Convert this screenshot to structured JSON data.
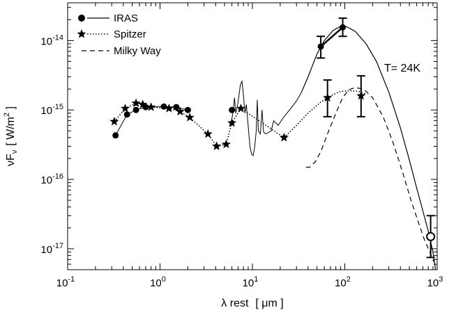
{
  "chart_data": {
    "type": "line",
    "title": "",
    "xlabel": {
      "prefix": "λ rest",
      "units": "[ μm ]"
    },
    "ylabel": {
      "prefix": "νF",
      "sub": "ν",
      "units": "[ W/m",
      "sup": "2",
      "close": " ]"
    },
    "x_scale": "log",
    "y_scale": "log",
    "xlim": [
      0.1,
      1000
    ],
    "ylim": [
      5e-18,
      3.5e-14
    ],
    "x_ticks": [
      {
        "value": 0.1,
        "base": "10",
        "exp": "-1"
      },
      {
        "value": 1,
        "base": "10",
        "exp": "0"
      },
      {
        "value": 10,
        "base": "10",
        "exp": "1"
      },
      {
        "value": 100,
        "base": "10",
        "exp": "2"
      },
      {
        "value": 1000,
        "base": "10",
        "exp": "3"
      }
    ],
    "y_ticks": [
      {
        "value": 1e-17,
        "base": "10",
        "exp": "-17"
      },
      {
        "value": 1e-16,
        "base": "10",
        "exp": "-16"
      },
      {
        "value": 1e-15,
        "base": "10",
        "exp": "-15"
      },
      {
        "value": 1e-14,
        "base": "10",
        "exp": "-14"
      }
    ],
    "grid": false,
    "legend_position": "top-left",
    "annotation": "T= 24K",
    "series": [
      {
        "name": "IRAS",
        "marker": "filled-circle",
        "line": "solid",
        "points": [
          {
            "x": 0.33,
            "y": 4.3e-16
          },
          {
            "x": 0.44,
            "y": 8.6e-16
          },
          {
            "x": 0.55,
            "y": 1e-15
          },
          {
            "x": 0.7,
            "y": 1.1e-15
          },
          {
            "x": 1.1,
            "y": 1.12e-15
          },
          {
            "x": 1.5,
            "y": 1.1e-15
          },
          {
            "x": 2.0,
            "y": 1e-15
          },
          {
            "x": 6.0,
            "y": 1e-15
          },
          {
            "x": 55,
            "y": 8.2e-15
          },
          {
            "x": 95,
            "y": 1.55e-14
          }
        ],
        "error_bars": [
          {
            "x": 55,
            "y": 8.2e-15,
            "lo": 5.6e-15,
            "hi": 1.15e-14
          },
          {
            "x": 95,
            "y": 1.55e-14,
            "lo": 1.15e-14,
            "hi": 2.1e-14
          }
        ],
        "spectrum": [
          {
            "x": 5.8,
            "y": 6e-16
          },
          {
            "x": 6.2,
            "y": 9.5e-16
          },
          {
            "x": 6.4,
            "y": 1.5e-15
          },
          {
            "x": 6.6,
            "y": 9e-16
          },
          {
            "x": 7.0,
            "y": 1.3e-15
          },
          {
            "x": 7.4,
            "y": 2.3e-15
          },
          {
            "x": 7.7,
            "y": 2.6e-15
          },
          {
            "x": 8.0,
            "y": 1.6e-15
          },
          {
            "x": 8.3,
            "y": 9e-16
          },
          {
            "x": 8.6,
            "y": 1.2e-15
          },
          {
            "x": 9.0,
            "y": 6e-16
          },
          {
            "x": 9.4,
            "y": 3e-16
          },
          {
            "x": 9.8,
            "y": 2.3e-16
          },
          {
            "x": 10.2,
            "y": 2.2e-16
          },
          {
            "x": 10.6,
            "y": 3e-16
          },
          {
            "x": 11.0,
            "y": 5e-16
          },
          {
            "x": 11.3,
            "y": 1.4e-15
          },
          {
            "x": 11.6,
            "y": 5e-16
          },
          {
            "x": 12.2,
            "y": 4.5e-16
          },
          {
            "x": 12.7,
            "y": 1e-15
          },
          {
            "x": 13.2,
            "y": 4.8e-16
          },
          {
            "x": 14,
            "y": 4.5e-16
          },
          {
            "x": 16,
            "y": 5e-16
          },
          {
            "x": 17,
            "y": 7e-16
          },
          {
            "x": 19,
            "y": 6e-16
          },
          {
            "x": 22,
            "y": 8e-16
          },
          {
            "x": 26,
            "y": 1.05e-15
          },
          {
            "x": 30,
            "y": 1.35e-15
          },
          {
            "x": 34,
            "y": 1.8e-15
          }
        ],
        "model": [
          {
            "x": 34,
            "y": 1.8e-15
          },
          {
            "x": 40,
            "y": 3e-15
          },
          {
            "x": 50,
            "y": 6.4e-15
          },
          {
            "x": 60,
            "y": 1e-14
          },
          {
            "x": 75,
            "y": 1.4e-14
          },
          {
            "x": 90,
            "y": 1.6e-14
          },
          {
            "x": 105,
            "y": 1.58e-14
          },
          {
            "x": 130,
            "y": 1.35e-14
          },
          {
            "x": 170,
            "y": 9e-15
          },
          {
            "x": 220,
            "y": 5e-15
          },
          {
            "x": 300,
            "y": 1.8e-15
          },
          {
            "x": 400,
            "y": 5.5e-16
          },
          {
            "x": 500,
            "y": 1.9e-16
          },
          {
            "x": 600,
            "y": 7.5e-17
          },
          {
            "x": 700,
            "y": 3.5e-17
          },
          {
            "x": 800,
            "y": 1.8e-17
          },
          {
            "x": 900,
            "y": 9e-18
          },
          {
            "x": 960,
            "y": 5e-18
          }
        ],
        "submm_point": {
          "x": 850,
          "y": 1.5e-17,
          "lo": 7.5e-18,
          "hi": 3e-17
        }
      },
      {
        "name": "Spitzer",
        "marker": "star",
        "line": "dotted",
        "points": [
          {
            "x": 0.32,
            "y": 6.8e-16
          },
          {
            "x": 0.42,
            "y": 1.05e-15
          },
          {
            "x": 0.55,
            "y": 1.25e-15
          },
          {
            "x": 0.65,
            "y": 1.2e-15
          },
          {
            "x": 0.8,
            "y": 1.1e-15
          },
          {
            "x": 1.25,
            "y": 1.05e-15
          },
          {
            "x": 1.65,
            "y": 9.5e-16
          },
          {
            "x": 2.1,
            "y": 7.8e-16
          },
          {
            "x": 3.3,
            "y": 4.5e-16
          },
          {
            "x": 4.1,
            "y": 3e-16
          },
          {
            "x": 5.2,
            "y": 3.2e-16
          },
          {
            "x": 6.0,
            "y": 6.5e-16
          },
          {
            "x": 7.5,
            "y": 1.05e-15
          },
          {
            "x": 22,
            "y": 4e-16
          },
          {
            "x": 65,
            "y": 1.5e-15
          },
          {
            "x": 150,
            "y": 1.6e-15
          }
        ],
        "error_bars": [
          {
            "x": 65,
            "y": 1.5e-15,
            "lo": 8e-16,
            "hi": 2.7e-15
          },
          {
            "x": 150,
            "y": 1.6e-15,
            "lo": 8e-16,
            "hi": 3.1e-15
          }
        ],
        "model": [
          {
            "x": 22,
            "y": 4e-16
          },
          {
            "x": 30,
            "y": 6e-16
          },
          {
            "x": 40,
            "y": 9e-16
          },
          {
            "x": 55,
            "y": 1.3e-15
          },
          {
            "x": 70,
            "y": 1.6e-15
          },
          {
            "x": 90,
            "y": 1.85e-15
          },
          {
            "x": 110,
            "y": 1.9e-15
          },
          {
            "x": 140,
            "y": 1.85e-15
          },
          {
            "x": 170,
            "y": 1.7e-15
          }
        ]
      },
      {
        "name": "Milky Way",
        "marker": "none",
        "line": "dashed",
        "points": [
          {
            "x": 38,
            "y": 1.5e-16
          },
          {
            "x": 42,
            "y": 1.5e-16
          },
          {
            "x": 48,
            "y": 1.8e-16
          },
          {
            "x": 55,
            "y": 2.5e-16
          },
          {
            "x": 65,
            "y": 4.5e-16
          },
          {
            "x": 80,
            "y": 9e-16
          },
          {
            "x": 95,
            "y": 1.5e-15
          },
          {
            "x": 110,
            "y": 1.95e-15
          },
          {
            "x": 130,
            "y": 2.1e-15
          },
          {
            "x": 160,
            "y": 2e-15
          },
          {
            "x": 200,
            "y": 1.5e-15
          },
          {
            "x": 260,
            "y": 8e-16
          },
          {
            "x": 330,
            "y": 3.5e-16
          },
          {
            "x": 420,
            "y": 1.3e-16
          },
          {
            "x": 520,
            "y": 5e-17
          },
          {
            "x": 620,
            "y": 2.5e-17
          },
          {
            "x": 720,
            "y": 1.4e-17
          },
          {
            "x": 830,
            "y": 9e-18
          },
          {
            "x": 920,
            "y": 6.5e-18
          }
        ]
      }
    ]
  }
}
